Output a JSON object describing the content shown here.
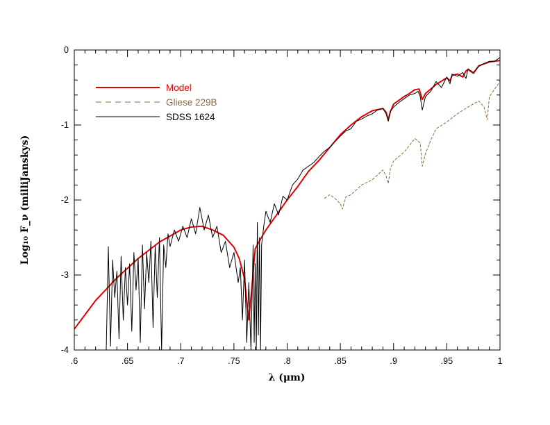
{
  "chart_data": {
    "type": "line",
    "xlabel": "λ (μm)",
    "ylabel": "Log₁₀ F_ν (milliJanskys)",
    "xlim": [
      0.6,
      1.0
    ],
    "ylim": [
      -4,
      0
    ],
    "x_tick_labels": [
      {
        "v": 0.6,
        "t": ".6"
      },
      {
        "v": 0.65,
        "t": ".65"
      },
      {
        "v": 0.7,
        "t": ".7"
      },
      {
        "v": 0.75,
        "t": ".75"
      },
      {
        "v": 0.8,
        "t": ".8"
      },
      {
        "v": 0.85,
        "t": ".85"
      },
      {
        "v": 0.9,
        "t": ".9"
      },
      {
        "v": 0.95,
        "t": ".95"
      },
      {
        "v": 1.0,
        "t": "1"
      }
    ],
    "y_tick_labels": [
      {
        "v": 0,
        "t": "0"
      },
      {
        "v": -1,
        "t": "-1"
      },
      {
        "v": -2,
        "t": "-2"
      },
      {
        "v": -3,
        "t": "-3"
      },
      {
        "v": -4,
        "t": "-4"
      }
    ],
    "grid": false,
    "legend_placement": "top-left",
    "series": [
      {
        "name": "Model",
        "color": "#e00000",
        "style": "solid",
        "x": [
          0.6,
          0.62,
          0.64,
          0.66,
          0.68,
          0.7,
          0.71,
          0.72,
          0.73,
          0.74,
          0.75,
          0.755,
          0.76,
          0.762,
          0.764,
          0.766,
          0.77,
          0.775,
          0.78,
          0.79,
          0.8,
          0.81,
          0.82,
          0.83,
          0.84,
          0.85,
          0.86,
          0.87,
          0.88,
          0.89,
          0.893,
          0.895,
          0.897,
          0.9,
          0.91,
          0.915,
          0.92,
          0.924,
          0.927,
          0.93,
          0.94,
          0.95,
          0.953,
          0.955,
          0.96,
          0.965,
          0.968,
          0.97,
          0.975,
          0.98,
          0.99,
          1.0
        ],
        "y": [
          -3.72,
          -3.34,
          -3.04,
          -2.78,
          -2.56,
          -2.4,
          -2.36,
          -2.35,
          -2.4,
          -2.47,
          -2.63,
          -2.78,
          -3.05,
          -3.35,
          -3.6,
          -3.3,
          -2.65,
          -2.52,
          -2.4,
          -2.2,
          -2.0,
          -1.82,
          -1.62,
          -1.47,
          -1.3,
          -1.13,
          -1.0,
          -0.89,
          -0.81,
          -0.78,
          -0.83,
          -0.93,
          -0.82,
          -0.72,
          -0.62,
          -0.58,
          -0.53,
          -0.52,
          -0.66,
          -0.58,
          -0.46,
          -0.37,
          -0.41,
          -0.34,
          -0.32,
          -0.36,
          -0.28,
          -0.26,
          -0.31,
          -0.21,
          -0.16,
          -0.14
        ]
      },
      {
        "name": "Gliese 229B",
        "color": "#8b6b3d",
        "style": "dashed",
        "x": [
          0.835,
          0.84,
          0.845,
          0.85,
          0.852,
          0.855,
          0.86,
          0.87,
          0.88,
          0.89,
          0.893,
          0.895,
          0.897,
          0.9,
          0.91,
          0.92,
          0.925,
          0.927,
          0.93,
          0.935,
          0.94,
          0.95,
          0.96,
          0.97,
          0.98,
          0.985,
          0.988,
          0.99,
          1.0
        ],
        "y": [
          -1.98,
          -1.93,
          -1.98,
          -2.05,
          -2.12,
          -1.96,
          -1.93,
          -1.8,
          -1.73,
          -1.6,
          -1.68,
          -1.78,
          -1.58,
          -1.48,
          -1.36,
          -1.18,
          -1.24,
          -1.55,
          -1.38,
          -1.2,
          -1.05,
          -0.96,
          -0.85,
          -0.76,
          -0.68,
          -0.76,
          -0.93,
          -0.62,
          -0.42
        ]
      },
      {
        "name": "SDSS 1624",
        "color": "#000000",
        "style": "solid",
        "x": [
          0.63,
          0.632,
          0.634,
          0.636,
          0.638,
          0.64,
          0.642,
          0.644,
          0.646,
          0.648,
          0.65,
          0.652,
          0.654,
          0.656,
          0.658,
          0.66,
          0.662,
          0.664,
          0.666,
          0.668,
          0.67,
          0.672,
          0.674,
          0.676,
          0.678,
          0.68,
          0.682,
          0.684,
          0.686,
          0.688,
          0.69,
          0.694,
          0.698,
          0.702,
          0.706,
          0.71,
          0.714,
          0.718,
          0.722,
          0.726,
          0.73,
          0.734,
          0.738,
          0.742,
          0.746,
          0.75,
          0.754,
          0.756,
          0.758,
          0.76,
          0.762,
          0.764,
          0.766,
          0.768,
          0.769,
          0.77,
          0.771,
          0.772,
          0.773,
          0.774,
          0.775,
          0.776,
          0.778,
          0.78,
          0.784,
          0.788,
          0.792,
          0.796,
          0.8,
          0.805,
          0.81,
          0.815,
          0.82,
          0.825,
          0.83,
          0.835,
          0.84,
          0.845,
          0.85,
          0.855,
          0.86,
          0.865,
          0.87,
          0.875,
          0.88,
          0.885,
          0.89,
          0.893,
          0.895,
          0.897,
          0.9,
          0.905,
          0.91,
          0.915,
          0.92,
          0.923,
          0.925,
          0.927,
          0.93,
          0.935,
          0.94,
          0.945,
          0.95,
          0.953,
          0.955,
          0.96,
          0.965,
          0.968,
          0.97,
          0.975,
          0.98,
          0.985,
          0.99,
          0.995,
          1.0
        ],
        "y": [
          -4.0,
          -2.62,
          -3.95,
          -2.8,
          -3.3,
          -2.95,
          -3.85,
          -2.75,
          -3.6,
          -2.9,
          -3.4,
          -2.85,
          -3.75,
          -2.7,
          -3.2,
          -2.78,
          -3.9,
          -2.6,
          -3.45,
          -2.7,
          -3.1,
          -2.55,
          -3.7,
          -2.6,
          -3.3,
          -2.5,
          -4.0,
          -2.6,
          -2.9,
          -2.45,
          -2.62,
          -2.4,
          -2.55,
          -2.35,
          -2.5,
          -2.25,
          -2.45,
          -2.1,
          -2.4,
          -2.2,
          -2.5,
          -2.35,
          -2.7,
          -2.55,
          -2.9,
          -2.7,
          -3.1,
          -2.9,
          -3.6,
          -2.8,
          -3.9,
          -3.1,
          -4.0,
          -2.6,
          -3.9,
          -2.85,
          -4.0,
          -2.3,
          -3.8,
          -2.5,
          -4.0,
          -2.6,
          -2.35,
          -2.15,
          -2.3,
          -2.05,
          -2.2,
          -1.95,
          -2.0,
          -1.8,
          -1.72,
          -1.6,
          -1.55,
          -1.5,
          -1.42,
          -1.35,
          -1.3,
          -1.22,
          -1.15,
          -1.08,
          -1.05,
          -0.95,
          -0.92,
          -0.88,
          -0.85,
          -0.8,
          -0.78,
          -0.85,
          -0.95,
          -0.82,
          -0.76,
          -0.7,
          -0.65,
          -0.6,
          -0.58,
          -0.55,
          -0.62,
          -0.8,
          -0.62,
          -0.55,
          -0.42,
          -0.5,
          -0.36,
          -0.45,
          -0.32,
          -0.35,
          -0.3,
          -0.38,
          -0.25,
          -0.3,
          -0.22,
          -0.18,
          -0.15,
          -0.15,
          -0.1
        ]
      }
    ]
  },
  "legend": {
    "items": [
      {
        "label": "Model",
        "color": "#e00000",
        "style": "solid"
      },
      {
        "label": "Gliese 229B",
        "color": "#8b6b3d",
        "style": "dashed"
      },
      {
        "label": "SDSS 1624",
        "color": "#000000",
        "style": "solid"
      }
    ]
  }
}
